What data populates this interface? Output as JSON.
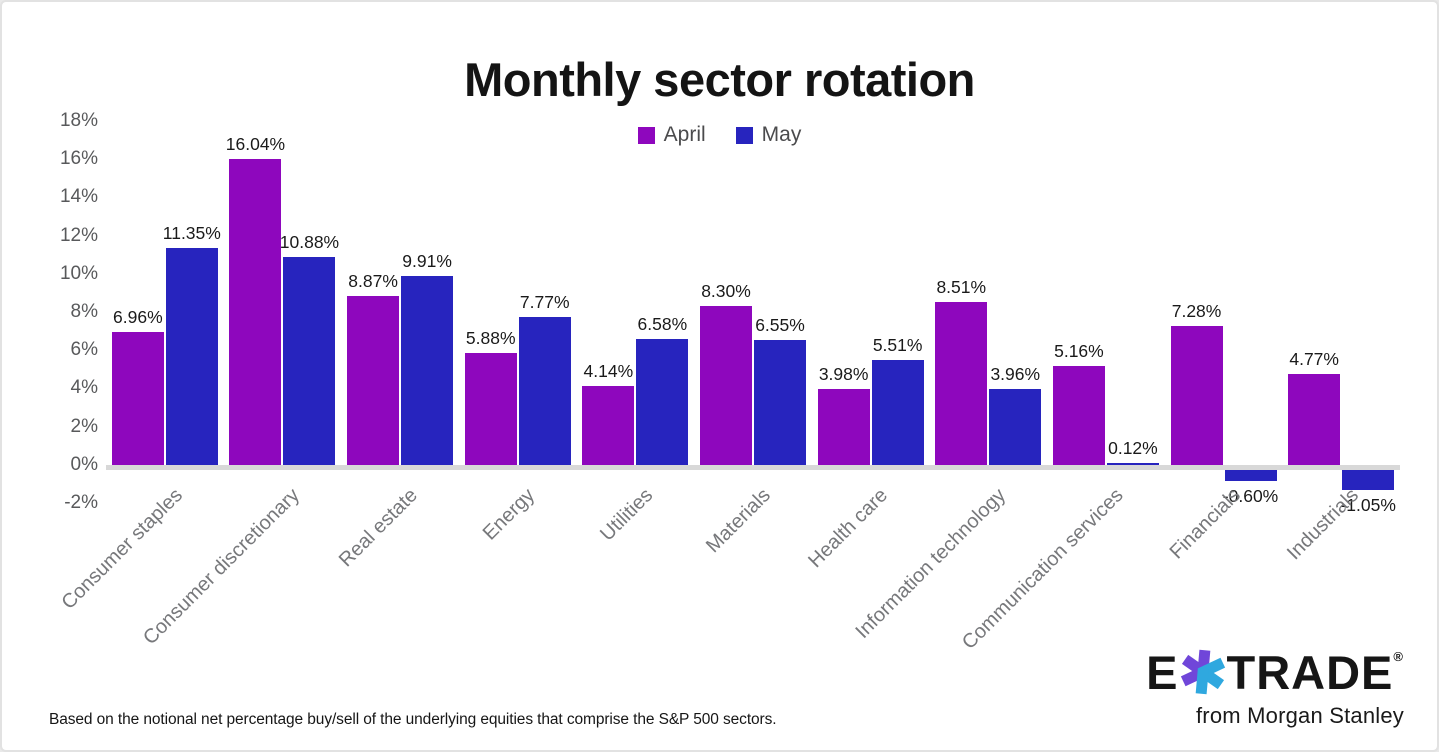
{
  "chart_data": {
    "type": "bar",
    "title": "Monthly sector rotation",
    "categories": [
      "Consumer staples",
      "Consumer discretionary",
      "Real estate",
      "Energy",
      "Utilities",
      "Materials",
      "Health care",
      "Information technology",
      "Communication services",
      "Financials",
      "Industrials"
    ],
    "series": [
      {
        "name": "April",
        "color": "#8e07bd",
        "values": [
          6.96,
          16.04,
          8.87,
          5.88,
          4.14,
          8.3,
          3.98,
          8.51,
          5.16,
          7.28,
          4.77
        ],
        "labels": [
          "6.96%",
          "16.04%",
          "8.87%",
          "5.88%",
          "4.14%",
          "8.30%",
          "3.98%",
          "8.51%",
          "5.16%",
          "7.28%",
          "4.77%"
        ]
      },
      {
        "name": "May",
        "color": "#2724be",
        "values": [
          11.35,
          10.88,
          9.91,
          7.77,
          6.58,
          6.55,
          5.51,
          3.96,
          0.12,
          -0.6,
          -1.05
        ],
        "labels": [
          "11.35%",
          "10.88%",
          "9.91%",
          "7.77%",
          "6.58%",
          "6.55%",
          "5.51%",
          "3.96%",
          "0.12%",
          "-0.60%",
          "-1.05%"
        ]
      }
    ],
    "y_axis": {
      "ticks": [
        "18%",
        "16%",
        "14%",
        "12%",
        "10%",
        "8%",
        "6%",
        "4%",
        "2%",
        "0%",
        "-2%"
      ],
      "max": 18,
      "min": -2,
      "step": 2
    },
    "legend": [
      "April",
      "May"
    ],
    "legend_position": "top-center",
    "gridlines": false,
    "baseline_color": "#d8d8d8"
  },
  "footer": {
    "note": "Based on the notional net percentage buy/sell of the underlying equities that comprise the S&P 500 sectors."
  },
  "branding": {
    "logo_e": "E",
    "logo_trade": "TRADE",
    "registered": "®",
    "tagline": "from Morgan Stanley",
    "star_purple": "#7046d9",
    "star_cyan": "#2fa8df"
  }
}
